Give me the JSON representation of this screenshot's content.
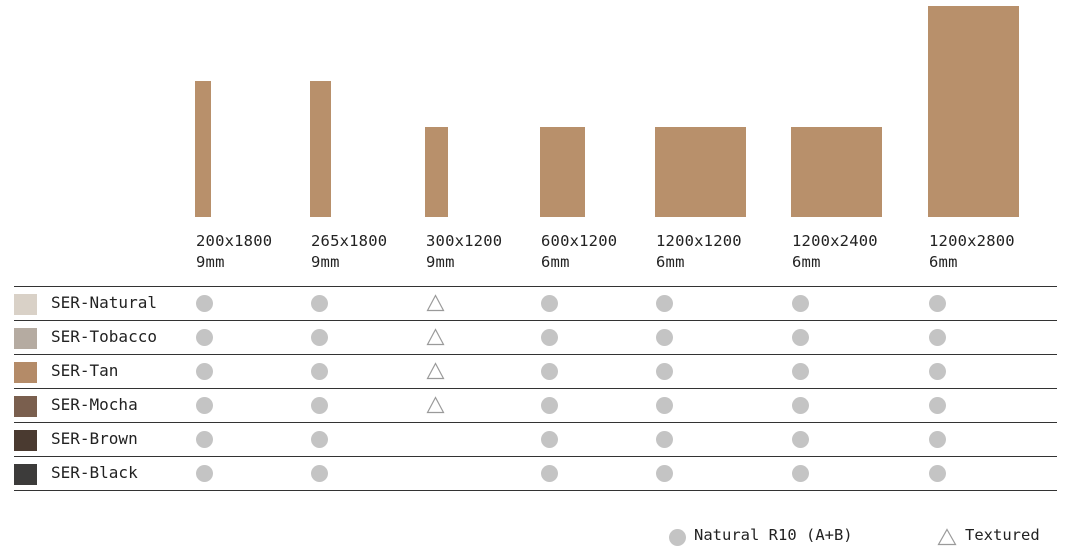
{
  "sizes": [
    {
      "dimension": "200x1800",
      "thickness": "9mm"
    },
    {
      "dimension": "265x1800",
      "thickness": "9mm"
    },
    {
      "dimension": "300x1200",
      "thickness": "9mm"
    },
    {
      "dimension": "600x1200",
      "thickness": "6mm"
    },
    {
      "dimension": "1200x1200",
      "thickness": "6mm"
    },
    {
      "dimension": "1200x2400",
      "thickness": "6mm"
    },
    {
      "dimension": "1200x2800",
      "thickness": "6mm"
    }
  ],
  "tile_color": "#b8906b",
  "rows": [
    {
      "name": "SER-Natural",
      "swatch": "#d9d1c7",
      "availability": [
        "natural",
        "natural",
        "textured",
        "natural",
        "natural",
        "natural",
        "natural"
      ]
    },
    {
      "name": "SER-Tobacco",
      "swatch": "#b5aba1",
      "availability": [
        "natural",
        "natural",
        "textured",
        "natural",
        "natural",
        "natural",
        "natural"
      ]
    },
    {
      "name": "SER-Tan",
      "swatch": "#b48b68",
      "availability": [
        "natural",
        "natural",
        "textured",
        "natural",
        "natural",
        "natural",
        "natural"
      ]
    },
    {
      "name": "SER-Mocha",
      "swatch": "#7a5f4e",
      "availability": [
        "natural",
        "natural",
        "textured",
        "natural",
        "natural",
        "natural",
        "natural"
      ]
    },
    {
      "name": "SER-Brown",
      "swatch": "#4a3a30",
      "availability": [
        "natural",
        "natural",
        "",
        "natural",
        "natural",
        "natural",
        "natural"
      ]
    },
    {
      "name": "SER-Black",
      "swatch": "#3c3b3a",
      "availability": [
        "natural",
        "natural",
        "",
        "natural",
        "natural",
        "natural",
        "natural"
      ]
    }
  ],
  "legend": {
    "natural_label": "Natural R10 (A+B)",
    "natural_icon": "filled-circle-icon",
    "textured_label": "Textured",
    "textured_icon": "triangle-outline-icon",
    "marker_color": "#c4c4c4"
  }
}
